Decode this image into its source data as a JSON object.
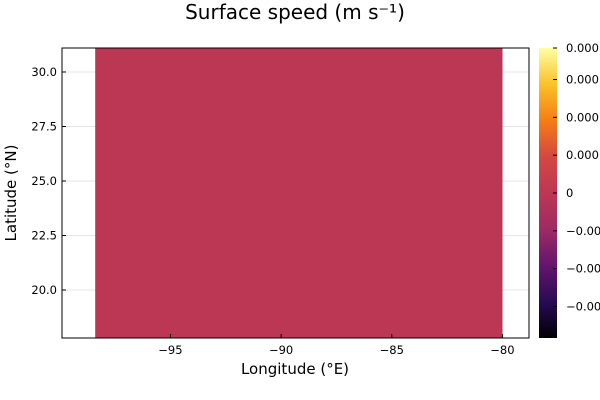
{
  "chart_data": {
    "type": "heatmap",
    "title": "Surface speed (m s⁻¹)",
    "xlabel": "Longitude (°E)",
    "ylabel": "Latitude (°N)",
    "xlim": [
      -99.9,
      -78.8
    ],
    "ylim": [
      17.8,
      31.1
    ],
    "xticks": [
      {
        "value": -95,
        "label": "−95"
      },
      {
        "value": -90,
        "label": "−90"
      },
      {
        "value": -85,
        "label": "−85"
      },
      {
        "value": -80,
        "label": "−80"
      }
    ],
    "yticks": [
      {
        "value": 20.0,
        "label": "20.0"
      },
      {
        "value": 22.5,
        "label": "22.5"
      },
      {
        "value": 25.0,
        "label": "25.0"
      },
      {
        "value": 27.5,
        "label": "27.5"
      },
      {
        "value": 30.0,
        "label": "30.0"
      }
    ],
    "field": {
      "x_range": [
        -98.4,
        -80.0
      ],
      "y_range": [
        17.8,
        31.1
      ],
      "value": 0,
      "fill_color": "#bc3754"
    },
    "colorbar": {
      "range": [
        -0.00115,
        0.00115
      ],
      "colors": [
        "#000004",
        "#280b54",
        "#65156e",
        "#9f2a63",
        "#bc3754",
        "#d44842",
        "#f57d15",
        "#fac228",
        "#fcffa4"
      ],
      "ticks": [
        {
          "value": -0.0009,
          "label": "−0.000"
        },
        {
          "value": -0.0006,
          "label": "−0.000"
        },
        {
          "value": -0.0003,
          "label": "−0.000"
        },
        {
          "value": 0,
          "label": "0"
        },
        {
          "value": 0.0003,
          "label": "0.000"
        },
        {
          "value": 0.0006,
          "label": "0.000"
        },
        {
          "value": 0.0009,
          "label": "0.000"
        },
        {
          "value": 0.00115,
          "label": "0.000"
        }
      ]
    },
    "grid": true,
    "grid_color": "#e5e5e5",
    "frame_color": "#000000"
  }
}
